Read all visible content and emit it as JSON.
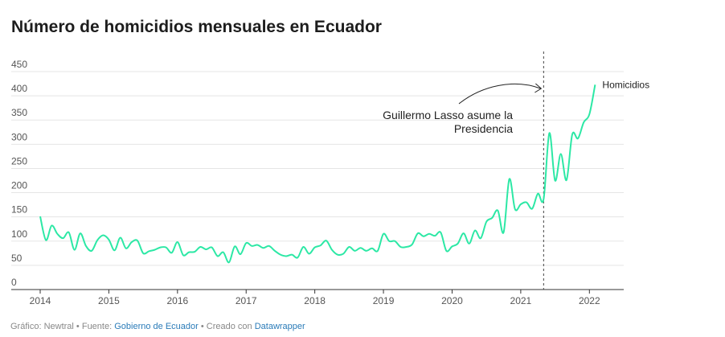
{
  "title": "Número de homicidios mensuales en Ecuador",
  "footer": {
    "credit": "Gráfico: Newtral",
    "source_prefix": "Fuente:",
    "source_name": "Gobierno de Ecuador",
    "created_prefix": "Creado con",
    "tool": "Datawrapper",
    "separator": "•"
  },
  "colors": {
    "line": "#2ce8a5",
    "grid": "#e5e5e5",
    "axis": "#333333",
    "text": "#555555",
    "link": "#2a7bb8"
  },
  "chart_data": {
    "type": "line",
    "ylim": [
      0,
      450
    ],
    "yticks": [
      0,
      50,
      100,
      150,
      200,
      250,
      300,
      350,
      400,
      450
    ],
    "xlim": [
      2014,
      2022.5
    ],
    "xticks": [
      "2014",
      "2015",
      "2016",
      "2017",
      "2018",
      "2019",
      "2020",
      "2021",
      "2022"
    ],
    "grid": true,
    "series": [
      {
        "name": "Homicidios",
        "start": "2014-01",
        "values": [
          151,
          102,
          132,
          115,
          106,
          118,
          82,
          116,
          90,
          80,
          102,
          112,
          103,
          81,
          107,
          85,
          98,
          101,
          75,
          79,
          82,
          87,
          87,
          76,
          98,
          71,
          77,
          78,
          88,
          83,
          87,
          69,
          77,
          56,
          89,
          73,
          96,
          90,
          92,
          86,
          90,
          80,
          72,
          69,
          72,
          66,
          88,
          74,
          87,
          91,
          101,
          82,
          72,
          74,
          88,
          80,
          86,
          80,
          85,
          80,
          115,
          100,
          100,
          88,
          88,
          93,
          116,
          110,
          115,
          111,
          118,
          80,
          89,
          95,
          116,
          95,
          122,
          106,
          140,
          148,
          163,
          118,
          228,
          166,
          176,
          180,
          167,
          198,
          187,
          323,
          225,
          280,
          226,
          320,
          312,
          345,
          362,
          423
        ]
      }
    ],
    "annotation": {
      "text_line1": "Guillermo Lasso asume la",
      "text_line2": "Presidencia",
      "x": "2021-05"
    }
  }
}
